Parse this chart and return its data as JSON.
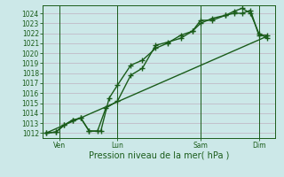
{
  "background_color": "#cce8e8",
  "grid_color": "#c0b0c0",
  "line_color": "#1a5c1a",
  "xlabel": "Pression niveau de la mer( hPa )",
  "ylim": [
    1011.5,
    1024.8
  ],
  "yticks": [
    1012,
    1013,
    1014,
    1015,
    1016,
    1017,
    1018,
    1019,
    1020,
    1021,
    1022,
    1023,
    1024
  ],
  "xlim": [
    0,
    14.0
  ],
  "xtick_positions": [
    1.0,
    4.5,
    9.5,
    13.0
  ],
  "xtick_labels": [
    "Ven",
    "Lun",
    "Sam",
    "Dim"
  ],
  "vline_positions": [
    1.0,
    4.5,
    9.5,
    13.0
  ],
  "line1_x": [
    0.2,
    0.8,
    1.3,
    1.8,
    2.3,
    2.8,
    3.3,
    3.8,
    4.5,
    5.3,
    6.0,
    6.8,
    7.5,
    8.3,
    9.0,
    9.5,
    10.2,
    11.0,
    11.5,
    12.0,
    12.5,
    13.0,
    13.5
  ],
  "line1_y": [
    1012.0,
    1012.1,
    1012.8,
    1013.3,
    1013.5,
    1012.2,
    1012.2,
    1014.5,
    1015.2,
    1017.8,
    1018.5,
    1020.8,
    1021.1,
    1021.5,
    1022.2,
    1023.3,
    1023.3,
    1023.8,
    1024.0,
    1024.0,
    1024.3,
    1021.8,
    1021.8
  ],
  "line2_x": [
    0.2,
    0.8,
    1.3,
    1.8,
    2.3,
    2.8,
    3.5,
    4.0,
    4.5,
    5.3,
    6.0,
    6.8,
    7.5,
    8.3,
    9.0,
    9.5,
    10.2,
    11.0,
    11.5,
    12.0,
    12.5,
    13.0,
    13.5
  ],
  "line2_y": [
    1012.0,
    1012.1,
    1012.8,
    1013.3,
    1013.5,
    1012.2,
    1012.2,
    1015.5,
    1016.8,
    1018.8,
    1019.3,
    1020.5,
    1021.0,
    1021.8,
    1022.2,
    1023.0,
    1023.5,
    1023.8,
    1024.2,
    1024.5,
    1024.0,
    1022.0,
    1021.5
  ],
  "line3_x": [
    0.2,
    13.5
  ],
  "line3_y": [
    1012.0,
    1021.7
  ],
  "marker": "+",
  "markersize": 4,
  "linewidth": 1.0
}
